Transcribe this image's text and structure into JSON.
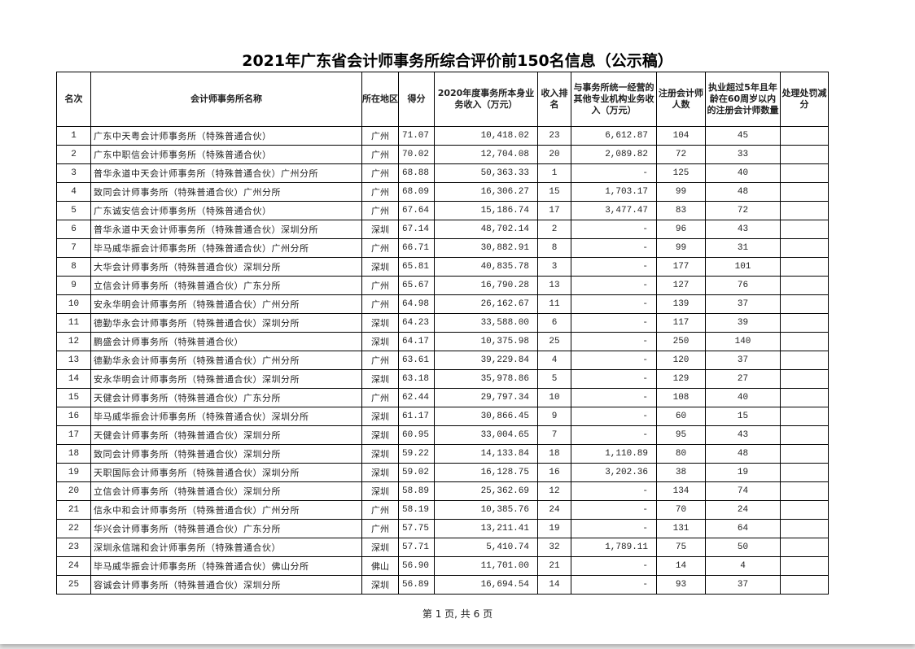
{
  "title": "2021年广东省会计师事务所综合评价前150名信息（公示稿）",
  "headers": [
    "名次",
    "会计师事务所名称",
    "所在地区",
    "得分",
    "2020年度事务所本身业务收入（万元）",
    "收入排名",
    "与事务所统一经营的其他专业机构业务收入（万元）",
    "注册会计师人数",
    "执业超过5年且年龄在60周岁以内的注册会计师数量",
    "处理处罚减分"
  ],
  "rows": [
    [
      "1",
      "广东中天粤会计师事务所（特殊普通合伙）",
      "广州",
      "71.07",
      "10,418.02",
      "23",
      "6,612.87",
      "104",
      "45",
      ""
    ],
    [
      "2",
      "广东中职信会计师事务所（特殊普通合伙）",
      "广州",
      "70.02",
      "12,704.08",
      "20",
      "2,089.82",
      "72",
      "33",
      ""
    ],
    [
      "3",
      "普华永道中天会计师事务所（特殊普通合伙）广州分所",
      "广州",
      "68.88",
      "50,363.33",
      "1",
      "-",
      "125",
      "40",
      ""
    ],
    [
      "4",
      "致同会计师事务所（特殊普通合伙）广州分所",
      "广州",
      "68.09",
      "16,306.27",
      "15",
      "1,703.17",
      "99",
      "48",
      ""
    ],
    [
      "5",
      "广东诚安信会计师事务所（特殊普通合伙）",
      "广州",
      "67.64",
      "15,186.74",
      "17",
      "3,477.47",
      "83",
      "72",
      ""
    ],
    [
      "6",
      "普华永道中天会计师事务所（特殊普通合伙）深圳分所",
      "深圳",
      "67.14",
      "48,702.14",
      "2",
      "-",
      "96",
      "43",
      ""
    ],
    [
      "7",
      "毕马威华振会计师事务所（特殊普通合伙）广州分所",
      "广州",
      "66.71",
      "30,882.91",
      "8",
      "-",
      "99",
      "31",
      ""
    ],
    [
      "8",
      "大华会计师事务所（特殊普通合伙）深圳分所",
      "深圳",
      "65.81",
      "40,835.78",
      "3",
      "-",
      "177",
      "101",
      ""
    ],
    [
      "9",
      "立信会计师事务所（特殊普通合伙）广东分所",
      "广州",
      "65.67",
      "16,790.28",
      "13",
      "-",
      "127",
      "76",
      ""
    ],
    [
      "10",
      "安永华明会计师事务所（特殊普通合伙）广州分所",
      "广州",
      "64.98",
      "26,162.67",
      "11",
      "-",
      "139",
      "37",
      ""
    ],
    [
      "11",
      "德勤华永会计师事务所（特殊普通合伙）深圳分所",
      "深圳",
      "64.23",
      "33,588.00",
      "6",
      "-",
      "117",
      "39",
      ""
    ],
    [
      "12",
      "鹏盛会计师事务所（特殊普通合伙）",
      "深圳",
      "64.17",
      "10,375.98",
      "25",
      "-",
      "250",
      "140",
      ""
    ],
    [
      "13",
      "德勤华永会计师事务所（特殊普通合伙）广州分所",
      "广州",
      "63.61",
      "39,229.84",
      "4",
      "-",
      "120",
      "37",
      ""
    ],
    [
      "14",
      "安永华明会计师事务所（特殊普通合伙）深圳分所",
      "深圳",
      "63.18",
      "35,978.86",
      "5",
      "-",
      "129",
      "27",
      ""
    ],
    [
      "15",
      "天健会计师事务所（特殊普通合伙）广东分所",
      "广州",
      "62.44",
      "29,797.34",
      "10",
      "-",
      "108",
      "40",
      ""
    ],
    [
      "16",
      "毕马威华振会计师事务所（特殊普通合伙）深圳分所",
      "深圳",
      "61.17",
      "30,866.45",
      "9",
      "-",
      "60",
      "15",
      ""
    ],
    [
      "17",
      "天健会计师事务所（特殊普通合伙）深圳分所",
      "深圳",
      "60.95",
      "33,004.65",
      "7",
      "-",
      "95",
      "43",
      ""
    ],
    [
      "18",
      "致同会计师事务所（特殊普通合伙）深圳分所",
      "深圳",
      "59.22",
      "14,133.84",
      "18",
      "1,110.89",
      "80",
      "48",
      ""
    ],
    [
      "19",
      "天职国际会计师事务所（特殊普通合伙）深圳分所",
      "深圳",
      "59.02",
      "16,128.75",
      "16",
      "3,202.36",
      "38",
      "19",
      ""
    ],
    [
      "20",
      "立信会计师事务所（特殊普通合伙）深圳分所",
      "深圳",
      "58.89",
      "25,362.69",
      "12",
      "-",
      "134",
      "74",
      ""
    ],
    [
      "21",
      "信永中和会计师事务所（特殊普通合伙）广州分所",
      "广州",
      "58.19",
      "10,385.76",
      "24",
      "-",
      "70",
      "24",
      ""
    ],
    [
      "22",
      "华兴会计师事务所（特殊普通合伙）广东分所",
      "广州",
      "57.75",
      "13,211.41",
      "19",
      "-",
      "131",
      "64",
      ""
    ],
    [
      "23",
      "深圳永信瑞和会计师事务所（特殊普通合伙）",
      "深圳",
      "57.71",
      "5,410.74",
      "32",
      "1,789.11",
      "75",
      "50",
      ""
    ],
    [
      "24",
      "毕马威华振会计师事务所（特殊普通合伙）佛山分所",
      "佛山",
      "56.90",
      "11,701.00",
      "21",
      "-",
      "14",
      "4",
      ""
    ],
    [
      "25",
      "容诚会计师事务所（特殊普通合伙）深圳分所",
      "深圳",
      "56.89",
      "16,694.54",
      "14",
      "-",
      "93",
      "37",
      ""
    ]
  ],
  "footer": "第 1 页, 共 6 页"
}
